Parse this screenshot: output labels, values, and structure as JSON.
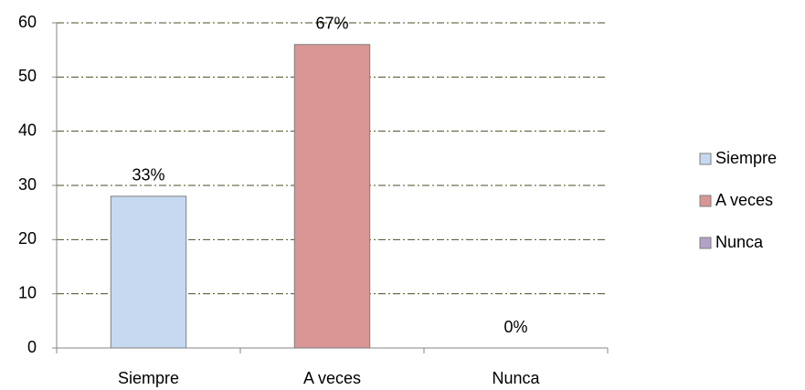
{
  "chart_data": {
    "type": "bar",
    "categories": [
      "Siempre",
      "A veces",
      "Nunca"
    ],
    "values": [
      28,
      56,
      0
    ],
    "value_labels": [
      "33%",
      "67%",
      "0%"
    ],
    "colors": [
      "#c6d9f1",
      "#d99694",
      "#b3a2c7"
    ],
    "ylim": [
      0,
      60
    ],
    "yticks": [
      0,
      10,
      20,
      30,
      40,
      50,
      60
    ],
    "grid": true,
    "legend": "right"
  }
}
